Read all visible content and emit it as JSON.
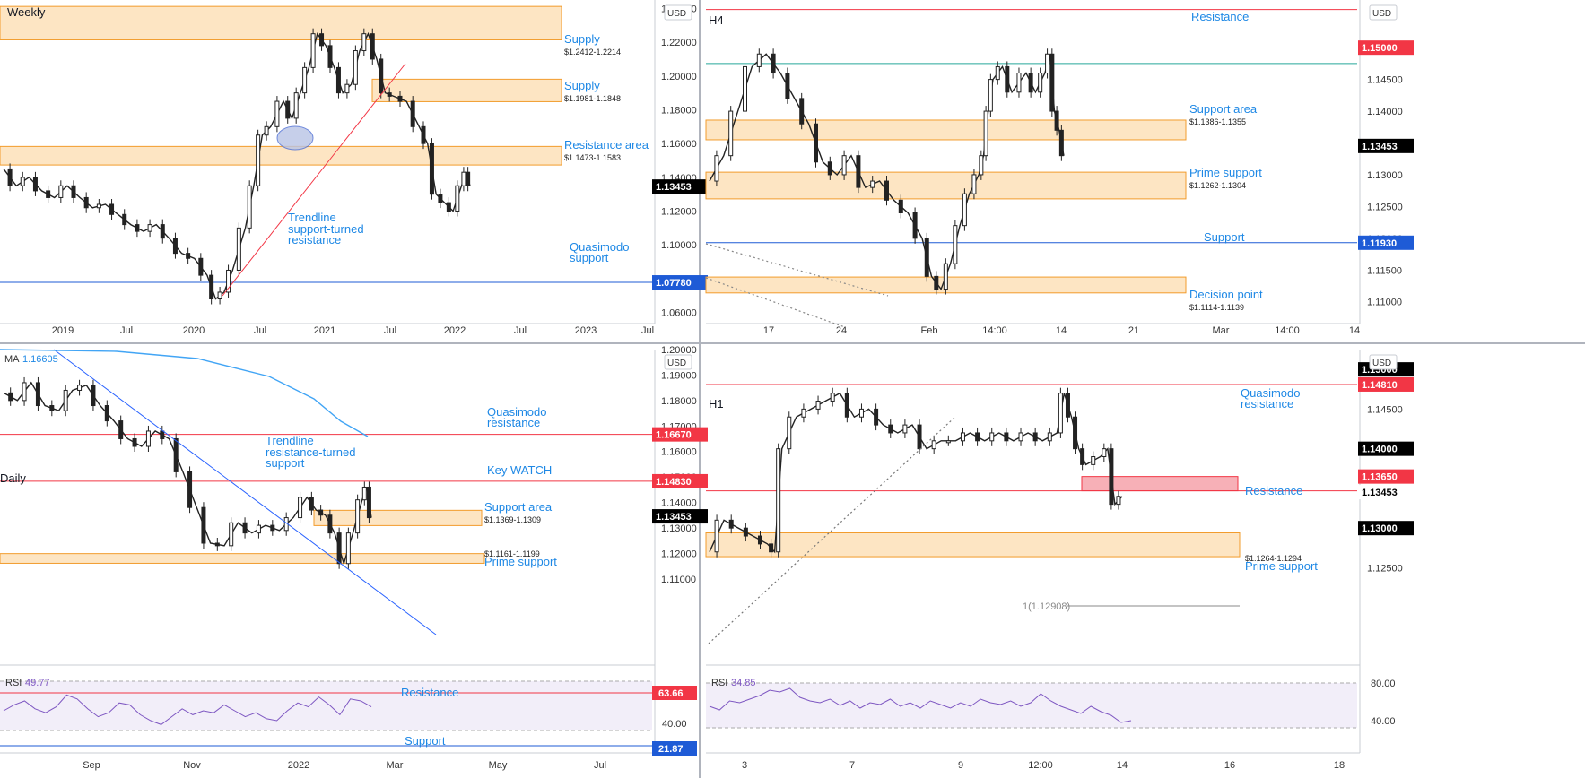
{
  "chart_data": [
    {
      "id": "weekly",
      "type": "candlestick",
      "title": "Weekly",
      "currency": "USD",
      "ylim": [
        1.055,
        1.245
      ],
      "y_ticks": [
        "1.24000",
        "1.22000",
        "1.20000",
        "1.18000",
        "1.16000",
        "1.14000",
        "1.12000",
        "1.10000",
        "1.08000",
        "1.06000"
      ],
      "x_ticks": [
        "2019",
        "Jul",
        "2020",
        "Jul",
        "2021",
        "Jul",
        "2022",
        "Jul",
        "2023",
        "Jul"
      ],
      "price_badges": [
        {
          "value": "1.13453",
          "y": 1.13453,
          "color": "#000000"
        },
        {
          "value": "1.07780",
          "y": 1.0778,
          "color": "#1e5bd6"
        }
      ],
      "zones": [
        {
          "label": "Supply",
          "range": "$1.2412-1.2214",
          "lo": 1.2214,
          "hi": 1.2412
        },
        {
          "label": "Supply",
          "range": "$1.1981-1.1848",
          "lo": 1.1848,
          "hi": 1.1981
        },
        {
          "label": "Resistance area",
          "range": "$1.1473-1.1583",
          "lo": 1.1473,
          "hi": 1.1583
        }
      ],
      "lines": [
        {
          "label": "Quasimodo support",
          "y": 1.0778,
          "color": "#1e5bd6"
        }
      ],
      "annotations": [
        "Trendline support-turned resistance",
        "Quasimodo support"
      ],
      "series_path": [
        [
          0,
          1.145
        ],
        [
          3,
          1.135
        ],
        [
          6,
          1.14
        ],
        [
          9,
          1.132
        ],
        [
          12,
          1.128
        ],
        [
          15,
          1.135
        ],
        [
          18,
          1.128
        ],
        [
          21,
          1.122
        ],
        [
          24,
          1.124
        ],
        [
          27,
          1.118
        ],
        [
          30,
          1.112
        ],
        [
          33,
          1.108
        ],
        [
          36,
          1.112
        ],
        [
          39,
          1.104
        ],
        [
          42,
          1.095
        ],
        [
          45,
          1.092
        ],
        [
          48,
          1.082
        ],
        [
          50,
          1.068
        ],
        [
          52,
          1.072
        ],
        [
          54,
          1.085
        ],
        [
          57,
          1.11
        ],
        [
          59,
          1.135
        ],
        [
          61,
          1.165
        ],
        [
          63,
          1.17
        ],
        [
          66,
          1.185
        ],
        [
          68,
          1.175
        ],
        [
          70,
          1.19
        ],
        [
          72,
          1.205
        ],
        [
          74,
          1.225
        ],
        [
          76,
          1.218
        ],
        [
          78,
          1.205
        ],
        [
          80,
          1.19
        ],
        [
          82,
          1.195
        ],
        [
          84,
          1.215
        ],
        [
          86,
          1.225
        ],
        [
          88,
          1.21
        ],
        [
          90,
          1.19
        ],
        [
          92,
          1.188
        ],
        [
          95,
          1.185
        ],
        [
          98,
          1.17
        ],
        [
          100,
          1.16
        ],
        [
          102,
          1.13
        ],
        [
          104,
          1.125
        ],
        [
          106,
          1.12
        ],
        [
          108,
          1.135
        ],
        [
          109,
          1.143
        ],
        [
          110,
          1.135
        ]
      ]
    },
    {
      "id": "h4",
      "type": "candlestick",
      "title": "H4",
      "currency": "USD",
      "ylim": [
        1.107,
        1.1575
      ],
      "y_ticks": [
        "1.15000",
        "1.14500",
        "1.14000",
        "1.13500",
        "1.13000",
        "1.12500",
        "1.12000",
        "1.11500",
        "1.11000"
      ],
      "x_ticks": [
        "17",
        "24",
        "Feb",
        "14:00",
        "14",
        "21",
        "Mar",
        "14:00",
        "14"
      ],
      "price_badges": [
        {
          "value": "1.15000",
          "y": 1.15,
          "color": "#f23645"
        },
        {
          "value": "1.13453",
          "y": 1.13453,
          "color": "#000000"
        },
        {
          "value": "1.11930",
          "y": 1.1193,
          "color": "#1e5bd6"
        }
      ],
      "zones": [
        {
          "label": "Support area",
          "range": "$1.1386-1.1355",
          "lo": 1.1355,
          "hi": 1.1386
        },
        {
          "label": "Prime support",
          "range": "$1.1262-1.1304",
          "lo": 1.1262,
          "hi": 1.1304
        },
        {
          "label": "Decision point",
          "range": "$1.1114-1.1139",
          "lo": 1.1114,
          "hi": 1.1139
        }
      ],
      "lines": [
        {
          "label": "Resistance",
          "y": 1.156,
          "color": "#f23645"
        },
        {
          "label": "",
          "y": 1.1475,
          "color": "#26a69a"
        },
        {
          "label": "Support",
          "y": 1.1193,
          "color": "#1e5bd6"
        }
      ],
      "series_path": [
        [
          0,
          1.129
        ],
        [
          3,
          1.133
        ],
        [
          6,
          1.14
        ],
        [
          9,
          1.147
        ],
        [
          12,
          1.149
        ],
        [
          15,
          1.146
        ],
        [
          18,
          1.142
        ],
        [
          21,
          1.138
        ],
        [
          24,
          1.132
        ],
        [
          27,
          1.13
        ],
        [
          30,
          1.133
        ],
        [
          33,
          1.128
        ],
        [
          36,
          1.129
        ],
        [
          39,
          1.126
        ],
        [
          42,
          1.124
        ],
        [
          45,
          1.12
        ],
        [
          47,
          1.114
        ],
        [
          49,
          1.112
        ],
        [
          51,
          1.116
        ],
        [
          53,
          1.122
        ],
        [
          55,
          1.127
        ],
        [
          57,
          1.13
        ],
        [
          58,
          1.133
        ],
        [
          59,
          1.14
        ],
        [
          60,
          1.145
        ],
        [
          62,
          1.147
        ],
        [
          64,
          1.143
        ],
        [
          67,
          1.146
        ],
        [
          69,
          1.143
        ],
        [
          71,
          1.146
        ],
        [
          72,
          1.149
        ],
        [
          73,
          1.14
        ],
        [
          74,
          1.137
        ],
        [
          75,
          1.133
        ]
      ]
    },
    {
      "id": "daily",
      "type": "candlestick",
      "title": "Daily",
      "currency": "USD",
      "ma_label": "MA",
      "ma_value": "1.16605",
      "ylim": [
        1.105,
        1.2
      ],
      "y_ticks": [
        "1.20000",
        "1.19000",
        "1.18000",
        "1.17000",
        "1.16000",
        "1.15000",
        "1.14000",
        "1.13000",
        "1.12000",
        "1.11000"
      ],
      "x_ticks": [
        "Sep",
        "Nov",
        "2022",
        "Mar",
        "May",
        "Jul"
      ],
      "price_badges": [
        {
          "value": "1.16670",
          "y": 1.1667,
          "color": "#f23645"
        },
        {
          "value": "1.14830",
          "y": 1.1483,
          "color": "#f23645"
        },
        {
          "value": "1.13453",
          "y": 1.13453,
          "color": "#000000"
        }
      ],
      "zones": [
        {
          "label": "Support area",
          "range": "$1.1369-1.1309",
          "lo": 1.1309,
          "hi": 1.1369
        },
        {
          "label": "Prime support",
          "range": "$1.1161-1.1199",
          "lo": 1.1161,
          "hi": 1.1199
        }
      ],
      "lines": [
        {
          "label": "Quasimodo resistance",
          "y": 1.1667,
          "color": "#f23645"
        },
        {
          "label": "Key WATCH",
          "y": 1.1483,
          "color": "#f23645"
        }
      ],
      "annotations": [
        "Trendline resistance-turned support"
      ],
      "series_path": [
        [
          0,
          1.183
        ],
        [
          3,
          1.18
        ],
        [
          6,
          1.187
        ],
        [
          9,
          1.178
        ],
        [
          12,
          1.176
        ],
        [
          15,
          1.184
        ],
        [
          18,
          1.186
        ],
        [
          21,
          1.178
        ],
        [
          24,
          1.172
        ],
        [
          27,
          1.165
        ],
        [
          30,
          1.162
        ],
        [
          33,
          1.168
        ],
        [
          36,
          1.165
        ],
        [
          39,
          1.152
        ],
        [
          42,
          1.138
        ],
        [
          45,
          1.124
        ],
        [
          48,
          1.123
        ],
        [
          51,
          1.132
        ],
        [
          54,
          1.128
        ],
        [
          57,
          1.131
        ],
        [
          60,
          1.129
        ],
        [
          63,
          1.134
        ],
        [
          66,
          1.142
        ],
        [
          68,
          1.137
        ],
        [
          70,
          1.135
        ],
        [
          72,
          1.128
        ],
        [
          74,
          1.116
        ],
        [
          76,
          1.128
        ],
        [
          78,
          1.141
        ],
        [
          79,
          1.146
        ],
        [
          80,
          1.134
        ]
      ]
    },
    {
      "id": "h1",
      "type": "candlestick",
      "title": "H1",
      "currency": "USD",
      "ylim": [
        1.122,
        1.1525
      ],
      "y_ticks": [
        "1.15000",
        "1.14500",
        "1.14000",
        "1.13500",
        "1.13000",
        "1.12500"
      ],
      "x_ticks": [
        "3",
        "7",
        "9",
        "12:00",
        "14",
        "16",
        "18"
      ],
      "price_badges": [
        {
          "value": "1.15000",
          "y": 1.15,
          "color": "#000000"
        },
        {
          "value": "1.14810",
          "y": 1.1481,
          "color": "#f23645"
        },
        {
          "value": "1.14000",
          "y": 1.14,
          "color": "#000000"
        },
        {
          "value": "1.13650",
          "y": 1.1365,
          "color": "#f23645"
        },
        {
          "value": "1.13453",
          "y": 1.13453,
          "color": "#ffffff"
        },
        {
          "value": "1.13000",
          "y": 1.13,
          "color": "#000000"
        }
      ],
      "zones": [
        {
          "label": "Resistance",
          "range": "",
          "lo": 1.1347,
          "hi": 1.1365,
          "color": "red"
        },
        {
          "label": "Prime support",
          "range": "$1.1264-1.1294",
          "lo": 1.1264,
          "hi": 1.1294
        }
      ],
      "lines": [
        {
          "label": "Quasimodo resistance",
          "y": 1.1481,
          "color": "#f23645"
        },
        {
          "label": "",
          "y": 1.1347,
          "color": "#f23645"
        }
      ],
      "fib_label": "1(1.12908)",
      "series_path": [
        [
          0,
          1.127
        ],
        [
          2,
          1.131
        ],
        [
          4,
          1.13
        ],
        [
          6,
          1.129
        ],
        [
          8,
          1.128
        ],
        [
          9,
          1.127
        ],
        [
          10,
          1.14
        ],
        [
          12,
          1.144
        ],
        [
          14,
          1.145
        ],
        [
          16,
          1.146
        ],
        [
          18,
          1.147
        ],
        [
          20,
          1.144
        ],
        [
          22,
          1.145
        ],
        [
          24,
          1.143
        ],
        [
          26,
          1.142
        ],
        [
          28,
          1.143
        ],
        [
          30,
          1.14
        ],
        [
          32,
          1.141
        ],
        [
          34,
          1.141
        ],
        [
          36,
          1.142
        ],
        [
          38,
          1.141
        ],
        [
          40,
          1.142
        ],
        [
          42,
          1.141
        ],
        [
          44,
          1.142
        ],
        [
          46,
          1.141
        ],
        [
          48,
          1.142
        ],
        [
          49,
          1.147
        ],
        [
          50,
          1.144
        ],
        [
          51,
          1.14
        ],
        [
          52,
          1.138
        ],
        [
          54,
          1.139
        ],
        [
          55,
          1.14
        ],
        [
          56,
          1.133
        ],
        [
          57,
          1.134
        ]
      ]
    }
  ],
  "rsi_panels": [
    {
      "id": "daily-rsi",
      "label": "RSI",
      "value": "49.77",
      "levels": [
        {
          "label": "Resistance",
          "value": "63.66"
        },
        {
          "label": "40.00",
          "value": "40.00"
        },
        {
          "label": "Support",
          "value": "21.87"
        }
      ]
    },
    {
      "id": "h1-rsi",
      "label": "RSI",
      "value": "34.85",
      "levels": [
        {
          "label": "80.00",
          "value": "80.00"
        },
        {
          "label": "40.00",
          "value": "40.00"
        }
      ]
    }
  ]
}
